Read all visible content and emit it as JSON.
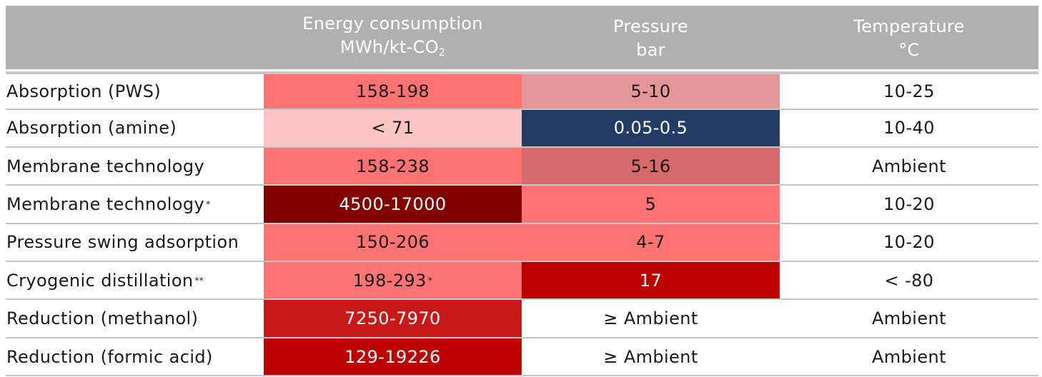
{
  "header": {
    "energy_title": "Energy consumption",
    "energy_unit": "MWh/kt-CO",
    "energy_unit_sub": "2",
    "pressure_title": "Pressure",
    "pressure_unit": "bar",
    "temperature_title": "Temperature",
    "temperature_unit": "°C"
  },
  "colors": {
    "header_bg": "#b0b0b0",
    "salmon": "#ff7373",
    "light_pink": "#ffc4c4",
    "dusty_rose": "#e39696",
    "muted_red": "#d66a6a",
    "maroon": "#800000",
    "dark_red": "#bb0000",
    "crimson": "#c81818",
    "navy": "#233c64"
  },
  "rows": [
    {
      "name": "Absorption (PWS)",
      "name_sup": "",
      "energy": "158-198",
      "energy_sup": "",
      "energy_bg": "#ff7373",
      "energy_fg": "#1a1a1a",
      "pressure": "5-10",
      "pressure_bg": "#e39696",
      "pressure_fg": "#1a1a1a",
      "temperature": "10-25"
    },
    {
      "name": "Absorption (amine)",
      "name_sup": "",
      "energy": "< 71",
      "energy_sup": "",
      "energy_bg": "#ffc4c4",
      "energy_fg": "#1a1a1a",
      "pressure": "0.05-0.5",
      "pressure_bg": "#233c64",
      "pressure_fg": "#ffffff",
      "temperature": "10-40"
    },
    {
      "name": "Membrane technology",
      "name_sup": "",
      "energy": "158-238",
      "energy_sup": "",
      "energy_bg": "#ff7373",
      "energy_fg": "#1a1a1a",
      "pressure": "5-16",
      "pressure_bg": "#d66a6a",
      "pressure_fg": "#1a1a1a",
      "temperature": "Ambient"
    },
    {
      "name": "Membrane technology",
      "name_sup": "*",
      "energy": "4500-17000",
      "energy_sup": "",
      "energy_bg": "#800000",
      "energy_fg": "#ffffff",
      "pressure": "5",
      "pressure_bg": "#ff7373",
      "pressure_fg": "#1a1a1a",
      "temperature": "10-20"
    },
    {
      "name": "Pressure swing adsorption",
      "name_sup": "",
      "energy": "150-206",
      "energy_sup": "",
      "energy_bg": "#ff7373",
      "energy_fg": "#1a1a1a",
      "pressure": "4-7",
      "pressure_bg": "#ff7373",
      "pressure_fg": "#1a1a1a",
      "temperature": "10-20"
    },
    {
      "name": "Cryogenic distillation",
      "name_sup": "**",
      "energy": "198-293",
      "energy_sup": "*",
      "energy_bg": "#ff7373",
      "energy_fg": "#1a1a1a",
      "pressure": "17",
      "pressure_bg": "#bb0000",
      "pressure_fg": "#ffffff",
      "temperature": "< -80"
    },
    {
      "name": "Reduction (methanol)",
      "name_sup": "",
      "energy": "7250-7970",
      "energy_sup": "",
      "energy_bg": "#c81818",
      "energy_fg": "#ffffff",
      "pressure": "≥ Ambient",
      "pressure_bg": "#ffffff",
      "pressure_fg": "#1a1a1a",
      "temperature": "Ambient"
    },
    {
      "name": "Reduction (formic acid)",
      "name_sup": "",
      "energy": "129-19226",
      "energy_sup": "",
      "energy_bg": "#bb0000",
      "energy_fg": "#ffffff",
      "pressure": "≥ Ambient",
      "pressure_bg": "#ffffff",
      "pressure_fg": "#1a1a1a",
      "temperature": "Ambient"
    }
  ]
}
